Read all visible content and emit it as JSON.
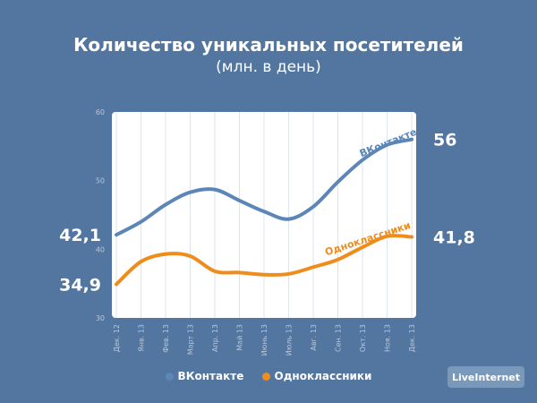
{
  "title": "Количество уникальных посетителей",
  "subtitle": "(млн. в день)",
  "brand": "LiveInternet",
  "colors": {
    "background": "#52769f",
    "plot_background": "#ffffff",
    "vk": "#5b86b7",
    "ok": "#ee8c1c",
    "tick_text": "#b7c7da"
  },
  "chart_data": {
    "type": "line",
    "title": "Количество уникальных посетителей",
    "subtitle": "(млн. в день)",
    "x": [
      "Дек. 12",
      "Янв. 13",
      "Фев. 13",
      "Март 13",
      "Апр. 13",
      "Май 13",
      "Июнь 13",
      "Июль 13",
      "Авг. 13",
      "Сен. 13",
      "Окт. 13",
      "Ноя. 13",
      "Дек. 13"
    ],
    "ylim": [
      30,
      60
    ],
    "yticks": [
      30,
      40,
      50,
      60
    ],
    "grid": "vertical",
    "legend": "bottom",
    "series": [
      {
        "name": "ВКонтакте",
        "color": "#5b86b7",
        "values": [
          42.1,
          44.0,
          46.5,
          48.3,
          48.7,
          47.1,
          45.5,
          44.4,
          46.2,
          49.8,
          53.0,
          55.2,
          56.0
        ],
        "start_label": "42,1",
        "end_label": "56"
      },
      {
        "name": "Одноклассники",
        "color": "#ee8c1c",
        "values": [
          34.9,
          38.2,
          39.3,
          39.0,
          36.8,
          36.6,
          36.3,
          36.4,
          37.4,
          38.5,
          40.3,
          41.9,
          41.8
        ],
        "start_label": "34,9",
        "end_label": "41,8"
      }
    ]
  }
}
